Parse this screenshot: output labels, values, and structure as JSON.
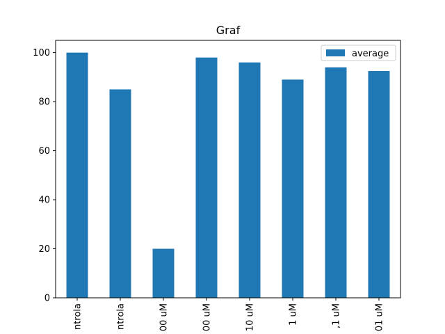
{
  "chart_data": {
    "type": "bar",
    "title": "Graf",
    "xlabel": "",
    "ylabel": "",
    "categories": [
      "ntrola",
      "ntrola",
      "00 uM",
      "00 uM",
      "10 uM",
      "1 uM",
      ",1 uM",
      "01 uM"
    ],
    "series": [
      {
        "name": "average",
        "values": [
          100,
          85,
          20,
          98,
          96,
          89,
          94,
          92.5
        ],
        "color": "#1f77b4"
      }
    ],
    "ylim": [
      0,
      105
    ],
    "yticks": [
      0,
      20,
      40,
      60,
      80,
      100
    ],
    "grid": false,
    "legend": "top-right"
  }
}
